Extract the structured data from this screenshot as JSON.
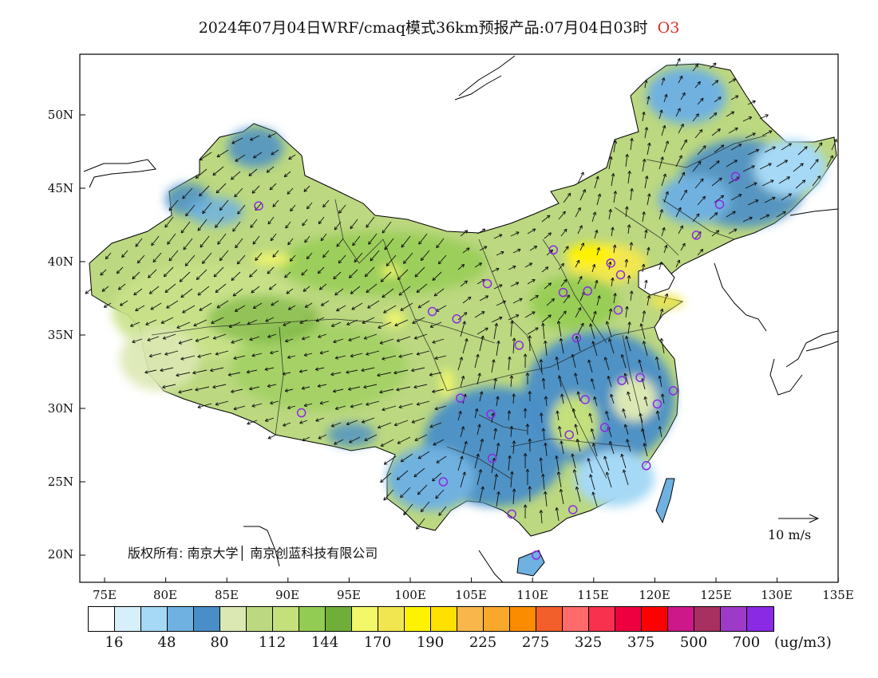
{
  "title": {
    "main": "2024年07月04日WRF/cmaq模式36km预报产品:07月04日03时",
    "pollutant": "O3"
  },
  "axes": {
    "lat_labels": [
      "50N",
      "45N",
      "40N",
      "35N",
      "30N",
      "25N",
      "20N"
    ],
    "lon_labels": [
      "75E",
      "80E",
      "85E",
      "90E",
      "95E",
      "100E",
      "105E",
      "110E",
      "115E",
      "120E",
      "125E",
      "130E",
      "135E"
    ]
  },
  "copyright": "版权所有: 南京大学│ 南京创蓝科技有限公司",
  "wind_reference": {
    "label": "10 m/s",
    "speed_ms": 10
  },
  "legend": {
    "colors": [
      "#ffffff",
      "#d7eefb",
      "#a5d9f5",
      "#6fb1e0",
      "#4a8ec8",
      "#dbe8b4",
      "#bcd880",
      "#c3e07c",
      "#93cc52",
      "#6fae38",
      "#f3f86a",
      "#f2e650",
      "#fff200",
      "#ffe100",
      "#f9b64a",
      "#f8a82a",
      "#fb8c00",
      "#f25f2a",
      "#ff6a6a",
      "#f8324e",
      "#ee0040",
      "#ff0000",
      "#cc1888",
      "#a83060",
      "#9e3ac8",
      "#8a2ae4"
    ],
    "tick_labels": [
      "16",
      "48",
      "80",
      "112",
      "144",
      "170",
      "190",
      "225",
      "275",
      "325",
      "375",
      "500",
      "700"
    ],
    "unit": "(ug/m3)"
  },
  "stations": [
    [
      87.6,
      43.8
    ],
    [
      91.1,
      29.7
    ],
    [
      101.8,
      36.6
    ],
    [
      103.8,
      36.1
    ],
    [
      106.3,
      38.5
    ],
    [
      104.1,
      30.7
    ],
    [
      106.6,
      29.6
    ],
    [
      106.7,
      26.6
    ],
    [
      102.7,
      25.0
    ],
    [
      108.3,
      22.8
    ],
    [
      110.3,
      20.0
    ],
    [
      113.3,
      23.1
    ],
    [
      108.9,
      34.3
    ],
    [
      112.5,
      37.9
    ],
    [
      114.5,
      38.0
    ],
    [
      116.4,
      39.9
    ],
    [
      117.2,
      39.1
    ],
    [
      111.7,
      40.8
    ],
    [
      113.6,
      34.8
    ],
    [
      117.0,
      36.7
    ],
    [
      114.3,
      30.6
    ],
    [
      113.0,
      28.2
    ],
    [
      115.9,
      28.7
    ],
    [
      117.3,
      31.9
    ],
    [
      118.8,
      32.1
    ],
    [
      121.5,
      31.2
    ],
    [
      120.2,
      30.3
    ],
    [
      119.3,
      26.1
    ],
    [
      123.4,
      41.8
    ],
    [
      125.3,
      43.9
    ],
    [
      126.6,
      45.8
    ]
  ],
  "colors": {
    "water": "#ffffff",
    "frame": "#000000",
    "station": "#8a2be2",
    "arrow": "#111111"
  }
}
